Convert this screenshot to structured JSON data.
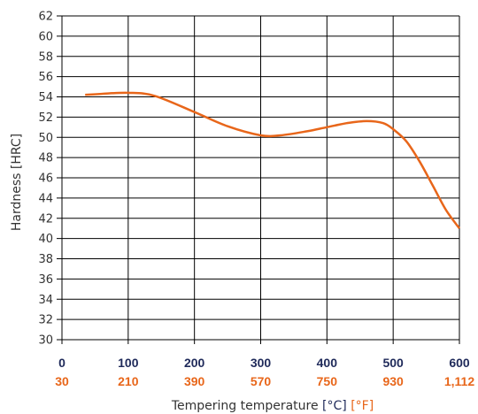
{
  "chart_data": {
    "type": "line",
    "xlabel": "Tempering temperature",
    "xlabel_unit_c": "[°C]",
    "xlabel_unit_f": "[°F]",
    "ylabel": "Hardness [HRC]",
    "xlim": [
      0,
      600
    ],
    "ylim": [
      30,
      62
    ],
    "grid": true,
    "y_ticks": [
      "30",
      "32",
      "34",
      "36",
      "38",
      "40",
      "42",
      "44",
      "46",
      "48",
      "50",
      "52",
      "54",
      "56",
      "58",
      "60",
      "62"
    ],
    "x_ticks_c": [
      "0",
      "100",
      "200",
      "300",
      "400",
      "500",
      "600"
    ],
    "x_ticks_f": [
      "30",
      "210",
      "390",
      "570",
      "750",
      "930",
      "1,112"
    ],
    "series": [
      {
        "x": [
          35,
          60,
          100,
          140,
          200,
          250,
          300,
          330,
          370,
          400,
          430,
          460,
          485,
          500,
          520,
          540,
          560,
          580,
          600
        ],
        "y": [
          54.2,
          54.3,
          54.4,
          54.1,
          52.5,
          51.1,
          50.2,
          50.2,
          50.6,
          51.0,
          51.4,
          51.6,
          51.4,
          50.8,
          49.6,
          47.6,
          45.2,
          42.8,
          41.0
        ]
      }
    ]
  },
  "colors": {
    "line": "#e8661a",
    "celsius": "#1f2a5a",
    "fahrenheit": "#e8661a",
    "grid": "#000000"
  }
}
